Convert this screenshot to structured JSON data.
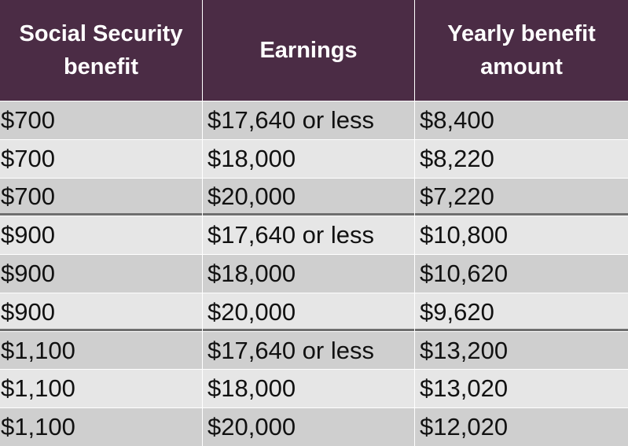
{
  "table": {
    "header": [
      "Social Security benefit",
      "Earnings",
      "Yearly benefit amount"
    ],
    "rows": [
      [
        "$700",
        "$17,640 or less",
        "$8,400"
      ],
      [
        "$700",
        "$18,000",
        "$8,220"
      ],
      [
        "$700",
        "$20,000",
        "$7,220"
      ],
      [
        "$900",
        "$17,640 or less",
        "$10,800"
      ],
      [
        "$900",
        "$18,000",
        "$10,620"
      ],
      [
        "$900",
        "$20,000",
        "$9,620"
      ],
      [
        "$1,100",
        "$17,640 or less",
        "$13,200"
      ],
      [
        "$1,100",
        "$18,000",
        "$13,020"
      ],
      [
        "$1,100",
        "$20,000",
        "$12,020"
      ]
    ]
  }
}
